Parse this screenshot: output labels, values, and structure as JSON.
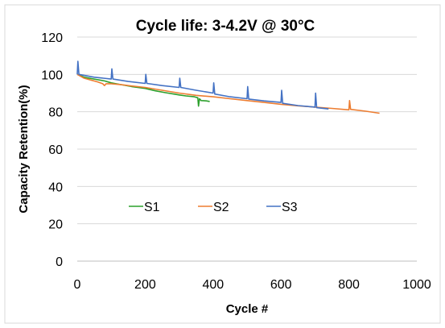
{
  "chart_data": {
    "type": "line",
    "title": "Cycle life: 3-4.2V @ 30°C",
    "xlabel": "Cycle #",
    "ylabel": "Capacity Retention(%)",
    "xlim": [
      0,
      1000
    ],
    "ylim": [
      0,
      120
    ],
    "xticks": [
      0,
      200,
      400,
      600,
      800,
      1000
    ],
    "yticks": [
      0,
      20,
      40,
      60,
      80,
      100,
      120
    ],
    "grid": "horizontal",
    "legend": "center-left",
    "series": [
      {
        "name": "S1",
        "color": "#2ca02c",
        "points": [
          [
            0,
            100
          ],
          [
            20,
            98.5
          ],
          [
            50,
            97.5
          ],
          [
            80,
            96.5
          ],
          [
            100,
            95.5
          ],
          [
            130,
            94.5
          ],
          [
            160,
            93.5
          ],
          [
            200,
            92.5
          ],
          [
            230,
            91.2
          ],
          [
            260,
            90.2
          ],
          [
            290,
            89.3
          ],
          [
            300,
            89
          ],
          [
            320,
            88.5
          ],
          [
            345,
            88
          ],
          [
            355,
            87.5
          ],
          [
            357,
            83
          ],
          [
            360,
            87
          ],
          [
            365,
            86
          ],
          [
            380,
            85.8
          ],
          [
            390,
            85.5
          ]
        ]
      },
      {
        "name": "S2",
        "color": "#ed7d31",
        "points": [
          [
            0,
            100
          ],
          [
            20,
            98
          ],
          [
            40,
            97
          ],
          [
            60,
            96
          ],
          [
            75,
            95
          ],
          [
            80,
            94
          ],
          [
            85,
            95
          ],
          [
            100,
            95
          ],
          [
            130,
            94.5
          ],
          [
            160,
            93.8
          ],
          [
            200,
            93
          ],
          [
            250,
            91.5
          ],
          [
            300,
            90
          ],
          [
            350,
            88.8
          ],
          [
            400,
            88
          ],
          [
            450,
            87
          ],
          [
            500,
            86
          ],
          [
            550,
            85
          ],
          [
            600,
            84
          ],
          [
            650,
            83.2
          ],
          [
            700,
            82.5
          ],
          [
            750,
            81.8
          ],
          [
            800,
            81
          ],
          [
            802,
            86
          ],
          [
            805,
            81.3
          ],
          [
            850,
            80.3
          ],
          [
            890,
            79.2
          ]
        ]
      },
      {
        "name": "S3",
        "color": "#4472c4",
        "points": [
          [
            0,
            100
          ],
          [
            2,
            107
          ],
          [
            5,
            100
          ],
          [
            50,
            98.5
          ],
          [
            100,
            97.5
          ],
          [
            102,
            103
          ],
          [
            105,
            97.5
          ],
          [
            150,
            96.2
          ],
          [
            200,
            95.2
          ],
          [
            202,
            100
          ],
          [
            205,
            95.2
          ],
          [
            250,
            94
          ],
          [
            300,
            93
          ],
          [
            302,
            98
          ],
          [
            305,
            93
          ],
          [
            350,
            91.5
          ],
          [
            400,
            90
          ],
          [
            402,
            95.5
          ],
          [
            405,
            89.5
          ],
          [
            450,
            88
          ],
          [
            500,
            87
          ],
          [
            502,
            93.5
          ],
          [
            505,
            86.8
          ],
          [
            550,
            85.8
          ],
          [
            600,
            85
          ],
          [
            602,
            91.5
          ],
          [
            605,
            84.5
          ],
          [
            650,
            83.3
          ],
          [
            700,
            82.5
          ],
          [
            702,
            90
          ],
          [
            705,
            82.2
          ],
          [
            740,
            81.5
          ]
        ]
      }
    ]
  }
}
